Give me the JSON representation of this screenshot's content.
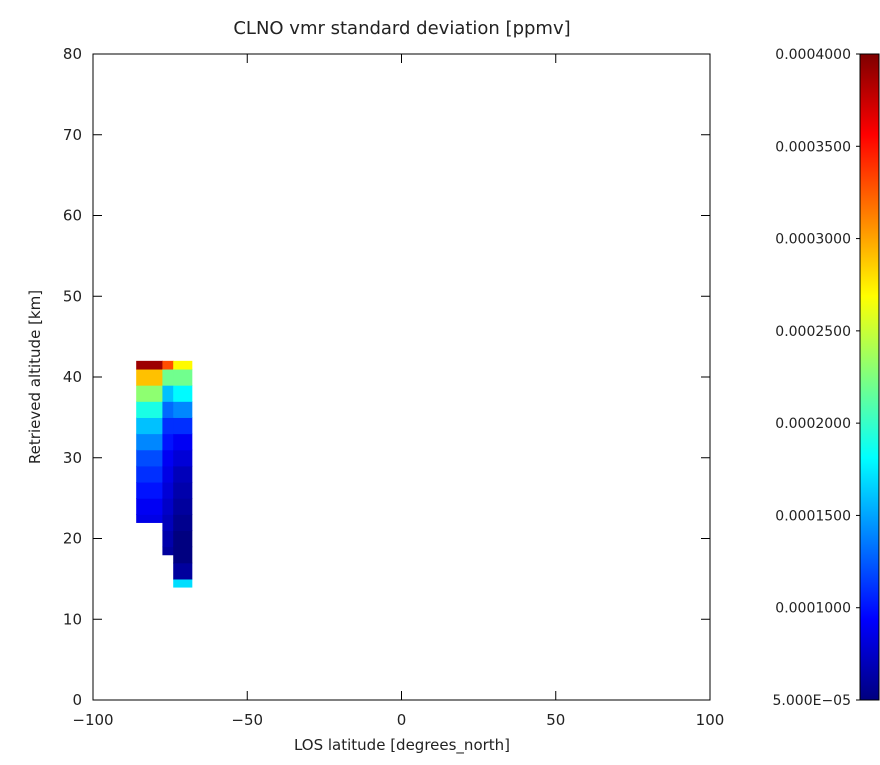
{
  "chart_data": {
    "type": "heatmap",
    "title": "CLNO vmr standard deviation [ppmv]",
    "xlabel": "LOS latitude [degrees_north]",
    "ylabel": "Retrieved altitude [km]",
    "xlim": [
      -100,
      100
    ],
    "ylim": [
      0,
      80
    ],
    "x_ticks": [
      -100,
      -50,
      0,
      50,
      100
    ],
    "x_tick_labels": [
      "−100",
      "−50",
      "0",
      "50",
      "100"
    ],
    "y_ticks": [
      0,
      10,
      20,
      30,
      40,
      50,
      60,
      70,
      80
    ],
    "y_tick_labels": [
      "0",
      "10",
      "20",
      "30",
      "40",
      "50",
      "60",
      "70",
      "80"
    ],
    "colorbar": {
      "min": 5e-05,
      "max": 0.0004,
      "ticks": [
        5e-05,
        0.0001,
        0.00015,
        0.0002,
        0.00025,
        0.0003,
        0.00035,
        0.0004
      ],
      "tick_labels": [
        "5.000E−05",
        "0.0001000",
        "0.0001500",
        "0.0002000",
        "0.0002500",
        "0.0003000",
        "0.0003500",
        "0.0004000"
      ],
      "colormap": "rainbow (dark blue to dark red)"
    },
    "columns": [
      {
        "x_range": [
          -86,
          -77.5
        ],
        "altitudes": [
          22,
          24,
          26,
          28,
          30,
          32,
          34,
          36,
          38,
          40,
          42
        ],
        "values": [
          8.5e-05,
          9e-05,
          0.0001,
          0.00011,
          0.00012,
          0.00014,
          0.00016,
          0.00019,
          0.00023,
          0.00029,
          0.00039
        ]
      },
      {
        "x_range": [
          -77.5,
          -74
        ],
        "altitudes": [
          18,
          20,
          22,
          24,
          26,
          28,
          30,
          32,
          34,
          36,
          38,
          40,
          42
        ],
        "values": [
          6e-05,
          6.5e-05,
          7e-05,
          7.5e-05,
          8e-05,
          8.5e-05,
          9e-05,
          0.0001,
          0.00011,
          0.00013,
          0.00016,
          0.00022,
          0.00033
        ]
      },
      {
        "x_range": [
          -74,
          -68
        ],
        "altitudes": [
          14,
          16,
          18,
          20,
          22,
          24,
          26,
          28,
          30,
          32,
          34,
          36,
          38,
          40,
          42
        ],
        "values": [
          0.00017,
          6e-05,
          5e-05,
          5e-05,
          5.5e-05,
          6e-05,
          6.5e-05,
          7e-05,
          8e-05,
          9e-05,
          0.00011,
          0.00014,
          0.00018,
          0.00022,
          0.00027
        ]
      }
    ]
  }
}
